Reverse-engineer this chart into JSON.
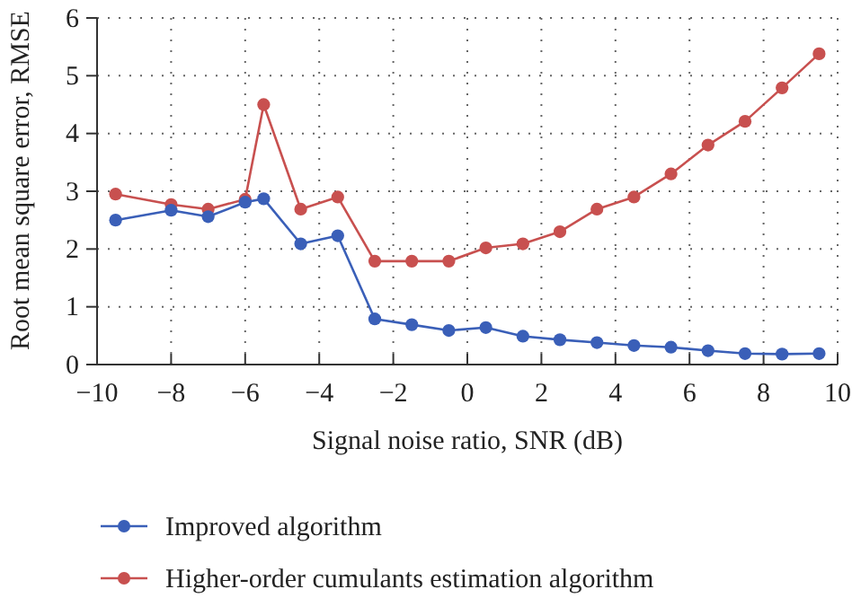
{
  "chart_data": {
    "type": "line",
    "xlabel": "Signal noise ratio, SNR (dB)",
    "ylabel": "Root mean square error, RMSE",
    "x": [
      -9.5,
      -8,
      -7,
      -6,
      -5.5,
      -4.5,
      -3.5,
      -2.5,
      -1.5,
      -0.5,
      0.5,
      1.5,
      2.5,
      3.5,
      4.5,
      5.5,
      6.5,
      7.5,
      8.5,
      9.5
    ],
    "series": [
      {
        "name": "Improved algorithm",
        "color": "#3a5fb8",
        "values": [
          2.5,
          2.67,
          2.56,
          2.81,
          2.87,
          2.09,
          2.23,
          0.79,
          0.69,
          0.59,
          0.64,
          0.49,
          0.43,
          0.38,
          0.33,
          0.3,
          0.24,
          0.19,
          0.18,
          0.19
        ]
      },
      {
        "name": "Higher-order cumulants estimation algorithm",
        "color": "#c8504f",
        "values": [
          2.95,
          2.77,
          2.69,
          2.86,
          4.5,
          2.69,
          2.9,
          1.79,
          1.79,
          1.79,
          2.02,
          2.09,
          2.3,
          2.69,
          2.9,
          3.3,
          3.8,
          4.21,
          4.79,
          5.38
        ]
      }
    ],
    "xlim": [
      -10,
      10
    ],
    "xticks": [
      -10,
      -8,
      -6,
      -4,
      -2,
      0,
      2,
      4,
      6,
      8,
      10
    ],
    "ylim": [
      0,
      6
    ],
    "yticks": [
      0,
      1,
      2,
      3,
      4,
      5,
      6
    ],
    "grid": true,
    "legend": "bottom",
    "marker": "circle",
    "line_style": "solid"
  }
}
